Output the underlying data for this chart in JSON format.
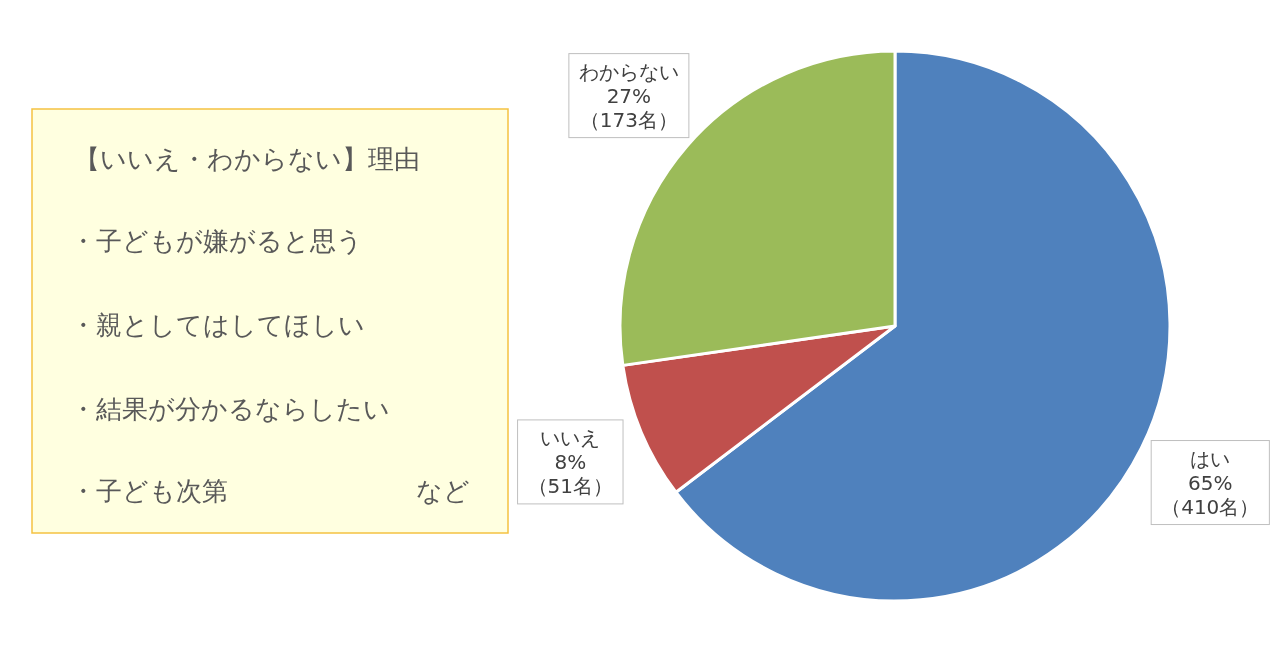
{
  "chart_data": [
    {
      "type": "other",
      "annotations": [
        "【いいえ・わからない】理由",
        "・子どもが嫌がると思う",
        "・親としてはしてほしい",
        "・結果が分かるならしたい",
        "・子ども次第",
        "など"
      ]
    },
    {
      "type": "pie",
      "categories": [
        "はい",
        "いいえ",
        "わからない"
      ],
      "values": [
        410,
        51,
        173
      ],
      "colors": [
        "#4f81bd",
        "#c0504d",
        "#9bbb59"
      ],
      "value_labels": [
        "65%\n（410名）",
        "8%\n（51名）",
        "27%\n（173名）"
      ]
    }
  ]
}
